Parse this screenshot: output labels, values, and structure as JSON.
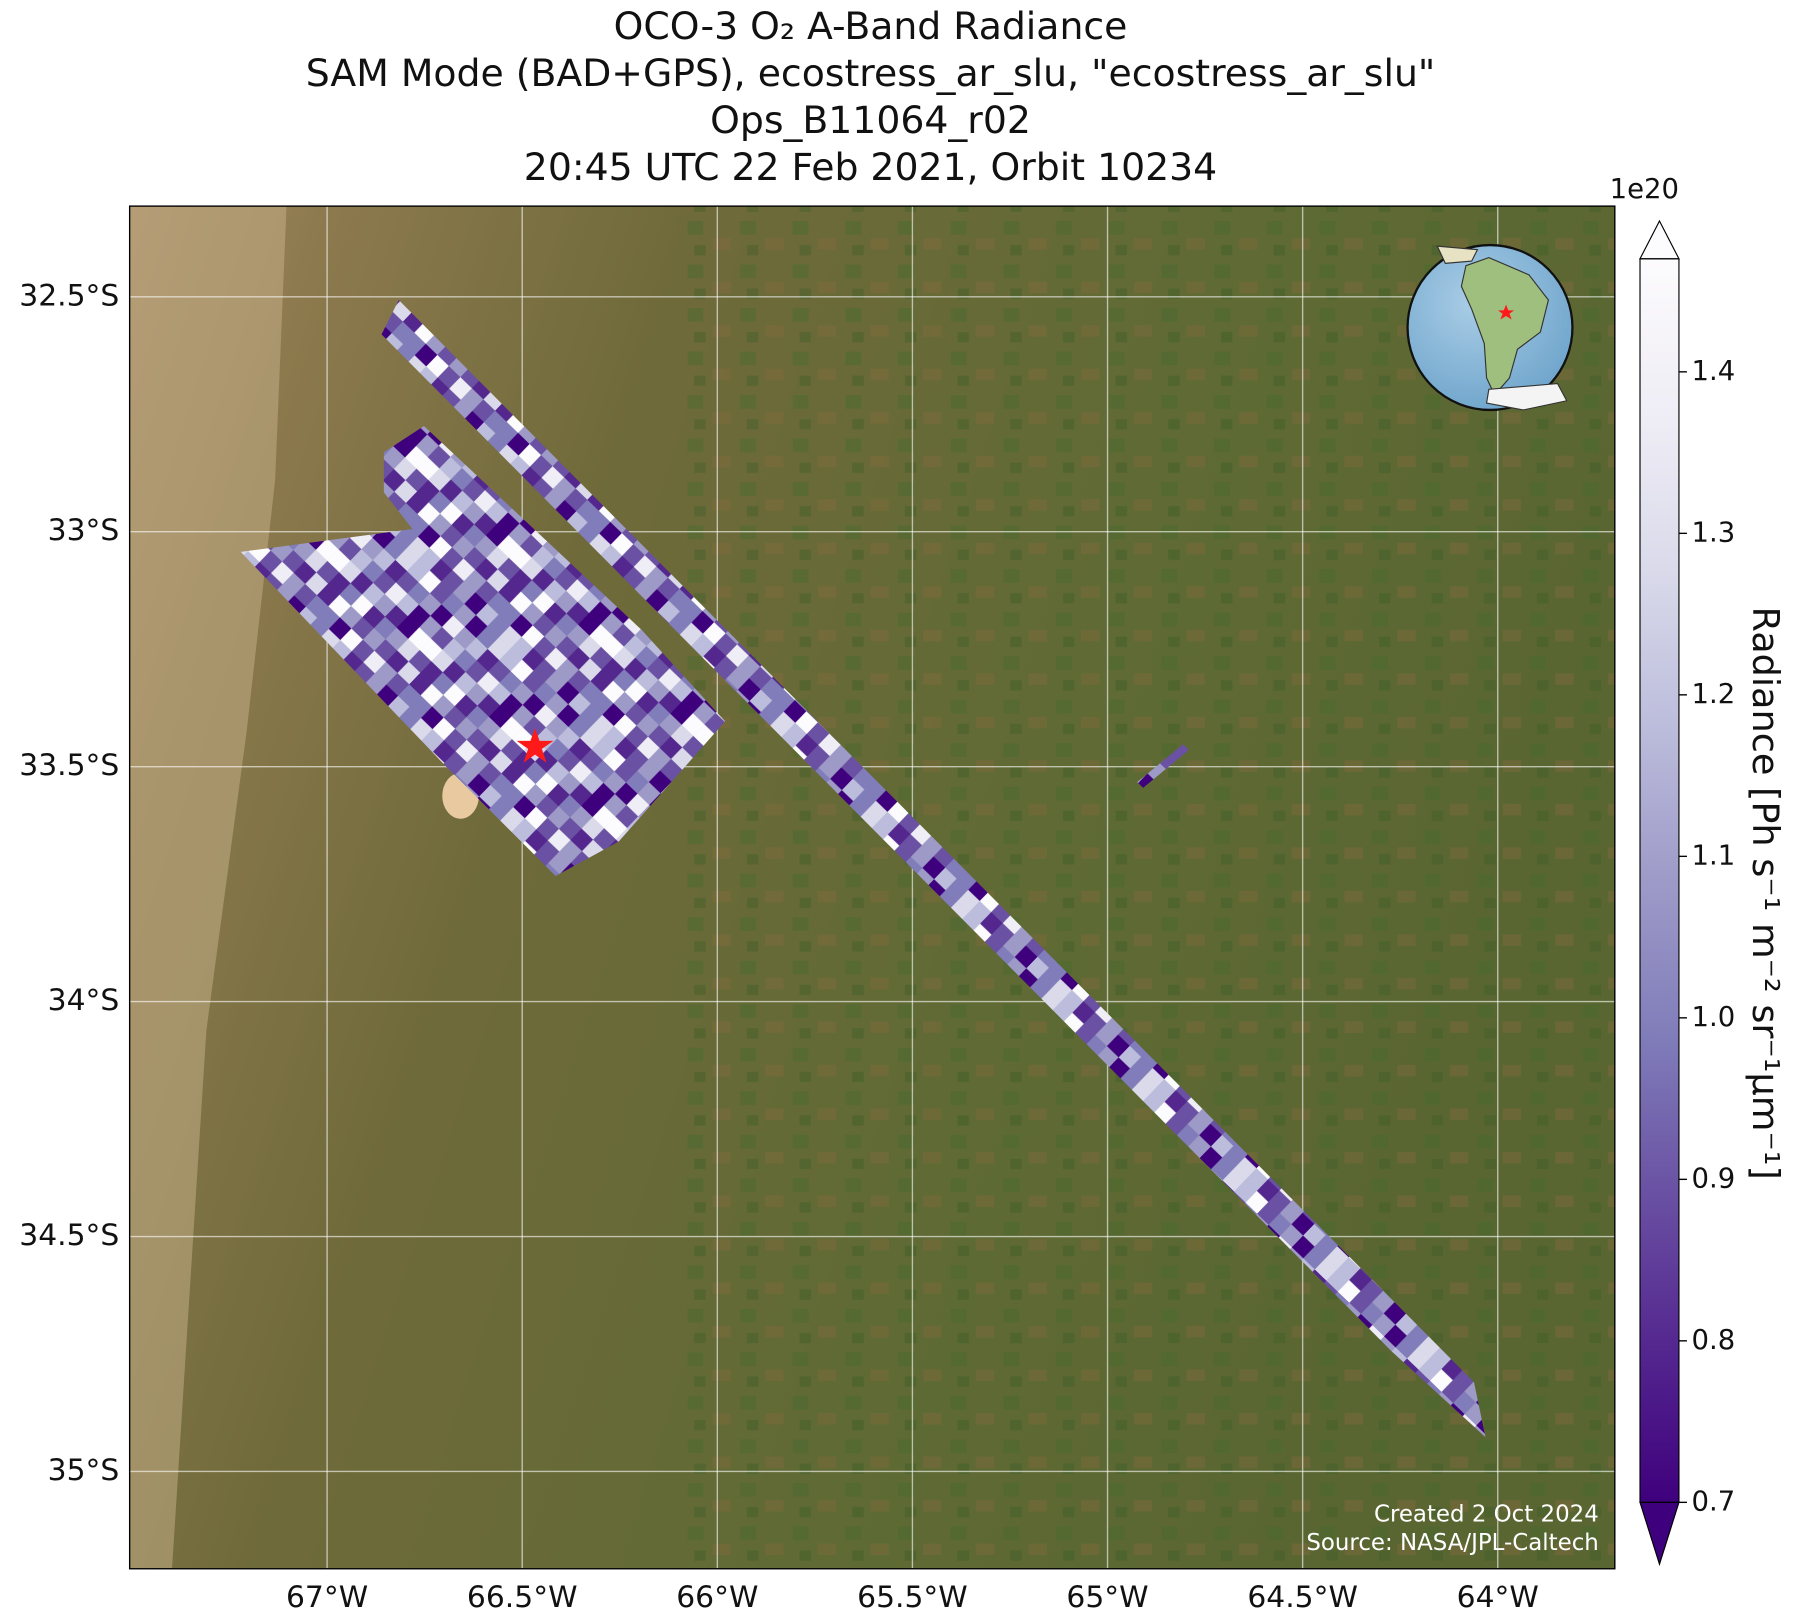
{
  "chart_data": {
    "type": "map",
    "title": [
      "OCO-3 O₂ A-Band Radiance",
      "SAM Mode (BAD+GPS), ecostress_ar_slu, \"ecostress_ar_slu\"",
      "Ops_B11064_r02",
      "20:45 UTC 22 Feb 2021, Orbit 10234"
    ],
    "xlim": [
      -67.506,
      -63.7
    ],
    "ylim": [
      -32.307,
      -35.207
    ],
    "xticks": [
      {
        "value": -67,
        "label": "67°W"
      },
      {
        "value": -66.5,
        "label": "66.5°W"
      },
      {
        "value": -66,
        "label": "66°W"
      },
      {
        "value": -65.5,
        "label": "65.5°W"
      },
      {
        "value": -65,
        "label": "65°W"
      },
      {
        "value": -64.5,
        "label": "64.5°W"
      },
      {
        "value": -64,
        "label": "64°W"
      }
    ],
    "yticks": [
      {
        "value": -32.5,
        "label": "32.5°S"
      },
      {
        "value": -33,
        "label": "33°S"
      },
      {
        "value": -33.5,
        "label": "33.5°S"
      },
      {
        "value": -34,
        "label": "34°S"
      },
      {
        "value": -34.5,
        "label": "34.5°S"
      },
      {
        "value": -35,
        "label": "35°S"
      }
    ],
    "grid": true,
    "colorbar": {
      "label": "Radiance [Ph s⁻¹ m⁻² sr⁻¹μm⁻¹]",
      "offset_label": "1e20",
      "ylim": [
        0.7,
        1.47
      ],
      "yticks": [
        0.7,
        0.8,
        0.9,
        {
          "value": 1,
          "label": "1.0"
        },
        1.1,
        1.2,
        1.3,
        1.4
      ],
      "colormap": [
        "#3f007d",
        "#54278f",
        "#6a51a3",
        "#807dba",
        "#9e9ac8",
        "#bcbddc",
        "#dadaeb",
        "#efedf5",
        "#fcfbfd"
      ]
    },
    "credits": [
      "Created 2 Oct 2024",
      "Source: NASA/JPL-Caltech"
    ]
  }
}
